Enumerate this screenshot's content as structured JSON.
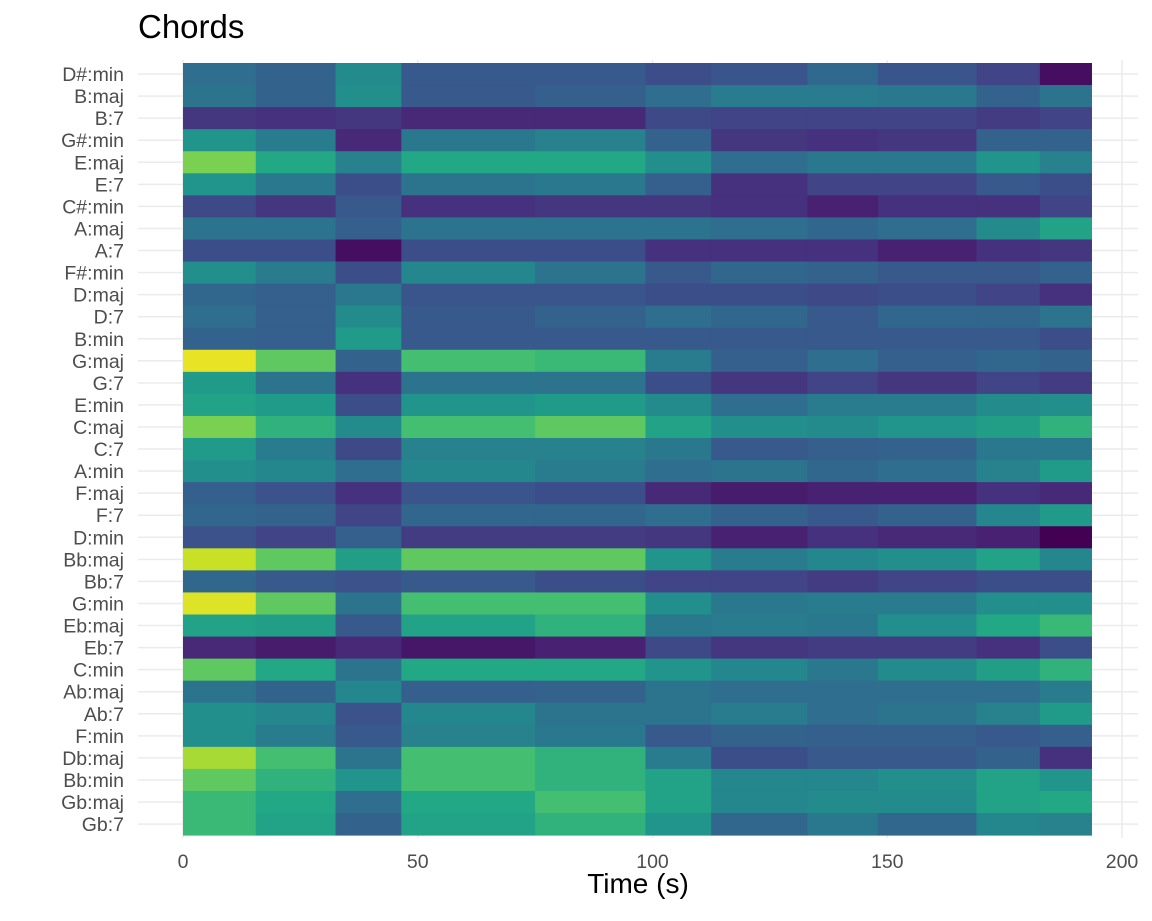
{
  "chart_data": {
    "type": "heatmap",
    "title": "Chords",
    "xlabel": "Time (s)",
    "ylabel": "",
    "xlim": [
      0,
      200
    ],
    "x_ticks": [
      0,
      50,
      100,
      150,
      200
    ],
    "grid": true,
    "legend": "none",
    "colormap": "viridis",
    "value_range": [
      0,
      1
    ],
    "time_bins": [
      [
        0,
        15.5
      ],
      [
        15.5,
        32.5
      ],
      [
        32.5,
        46.5
      ],
      [
        46.5,
        75
      ],
      [
        75,
        98.5
      ],
      [
        98.5,
        112.5
      ],
      [
        112.5,
        133
      ],
      [
        133,
        148
      ],
      [
        148,
        169
      ],
      [
        169,
        182.5
      ],
      [
        182.5,
        193.5
      ]
    ],
    "chords": [
      "D#:min",
      "B:maj",
      "B:7",
      "G#:min",
      "E:maj",
      "E:7",
      "C#:min",
      "A:maj",
      "A:7",
      "F#:min",
      "D:maj",
      "D:7",
      "B:min",
      "G:maj",
      "G:7",
      "E:min",
      "C:maj",
      "C:7",
      "A:min",
      "F:maj",
      "F:7",
      "D:min",
      "Bb:maj",
      "Bb:7",
      "G:min",
      "Eb:maj",
      "Eb:7",
      "C:min",
      "Ab:maj",
      "Ab:7",
      "F:min",
      "Db:maj",
      "Bb:min",
      "Gb:maj",
      "Gb:7"
    ],
    "values": [
      [
        0.45,
        0.4,
        0.6,
        0.35,
        0.35,
        0.3,
        0.33,
        0.43,
        0.33,
        0.25,
        0.05
      ],
      [
        0.48,
        0.4,
        0.62,
        0.35,
        0.38,
        0.45,
        0.52,
        0.52,
        0.5,
        0.4,
        0.48
      ],
      [
        0.2,
        0.18,
        0.2,
        0.15,
        0.15,
        0.28,
        0.25,
        0.25,
        0.25,
        0.22,
        0.25
      ],
      [
        0.65,
        0.52,
        0.15,
        0.5,
        0.55,
        0.4,
        0.2,
        0.18,
        0.2,
        0.4,
        0.4
      ],
      [
        0.88,
        0.75,
        0.55,
        0.75,
        0.75,
        0.62,
        0.45,
        0.5,
        0.5,
        0.65,
        0.55
      ],
      [
        0.65,
        0.5,
        0.3,
        0.48,
        0.5,
        0.38,
        0.18,
        0.25,
        0.25,
        0.35,
        0.3
      ],
      [
        0.28,
        0.2,
        0.35,
        0.18,
        0.2,
        0.2,
        0.18,
        0.12,
        0.18,
        0.18,
        0.25
      ],
      [
        0.48,
        0.48,
        0.38,
        0.48,
        0.48,
        0.48,
        0.45,
        0.42,
        0.45,
        0.6,
        0.72
      ],
      [
        0.3,
        0.3,
        0.05,
        0.3,
        0.3,
        0.18,
        0.18,
        0.18,
        0.12,
        0.18,
        0.2
      ],
      [
        0.62,
        0.52,
        0.3,
        0.58,
        0.48,
        0.35,
        0.42,
        0.4,
        0.35,
        0.35,
        0.4
      ],
      [
        0.42,
        0.38,
        0.5,
        0.33,
        0.33,
        0.3,
        0.3,
        0.28,
        0.3,
        0.25,
        0.18
      ],
      [
        0.45,
        0.38,
        0.6,
        0.35,
        0.4,
        0.45,
        0.42,
        0.35,
        0.42,
        0.42,
        0.48
      ],
      [
        0.4,
        0.38,
        0.68,
        0.35,
        0.35,
        0.35,
        0.35,
        0.35,
        0.35,
        0.35,
        0.3
      ],
      [
        0.98,
        0.85,
        0.4,
        0.82,
        0.8,
        0.52,
        0.38,
        0.45,
        0.38,
        0.42,
        0.4
      ],
      [
        0.68,
        0.48,
        0.18,
        0.48,
        0.48,
        0.3,
        0.2,
        0.25,
        0.2,
        0.25,
        0.22
      ],
      [
        0.72,
        0.68,
        0.3,
        0.65,
        0.68,
        0.6,
        0.45,
        0.52,
        0.52,
        0.6,
        0.62
      ],
      [
        0.88,
        0.78,
        0.6,
        0.82,
        0.85,
        0.72,
        0.62,
        0.6,
        0.65,
        0.7,
        0.78
      ],
      [
        0.68,
        0.52,
        0.28,
        0.55,
        0.55,
        0.5,
        0.35,
        0.38,
        0.4,
        0.5,
        0.5
      ],
      [
        0.62,
        0.58,
        0.45,
        0.58,
        0.52,
        0.45,
        0.48,
        0.42,
        0.45,
        0.55,
        0.68
      ],
      [
        0.38,
        0.32,
        0.18,
        0.33,
        0.3,
        0.15,
        0.1,
        0.12,
        0.12,
        0.18,
        0.15
      ],
      [
        0.42,
        0.4,
        0.25,
        0.42,
        0.42,
        0.45,
        0.4,
        0.35,
        0.4,
        0.58,
        0.68
      ],
      [
        0.32,
        0.25,
        0.38,
        0.22,
        0.22,
        0.2,
        0.12,
        0.18,
        0.15,
        0.12,
        0.0
      ],
      [
        0.95,
        0.85,
        0.7,
        0.85,
        0.85,
        0.65,
        0.52,
        0.58,
        0.62,
        0.72,
        0.58
      ],
      [
        0.42,
        0.35,
        0.32,
        0.35,
        0.3,
        0.25,
        0.25,
        0.22,
        0.25,
        0.3,
        0.3
      ],
      [
        0.97,
        0.85,
        0.48,
        0.82,
        0.82,
        0.62,
        0.5,
        0.52,
        0.52,
        0.62,
        0.62
      ],
      [
        0.72,
        0.7,
        0.35,
        0.72,
        0.78,
        0.5,
        0.52,
        0.5,
        0.62,
        0.75,
        0.8
      ],
      [
        0.15,
        0.1,
        0.15,
        0.08,
        0.12,
        0.28,
        0.2,
        0.22,
        0.22,
        0.18,
        0.3
      ],
      [
        0.85,
        0.75,
        0.48,
        0.75,
        0.75,
        0.65,
        0.58,
        0.5,
        0.6,
        0.7,
        0.78
      ],
      [
        0.48,
        0.4,
        0.58,
        0.38,
        0.4,
        0.48,
        0.45,
        0.45,
        0.45,
        0.45,
        0.52
      ],
      [
        0.62,
        0.58,
        0.32,
        0.58,
        0.48,
        0.48,
        0.52,
        0.45,
        0.48,
        0.55,
        0.68
      ],
      [
        0.62,
        0.52,
        0.35,
        0.55,
        0.5,
        0.35,
        0.4,
        0.38,
        0.38,
        0.35,
        0.38
      ],
      [
        0.92,
        0.82,
        0.48,
        0.82,
        0.78,
        0.52,
        0.3,
        0.35,
        0.35,
        0.4,
        0.18
      ],
      [
        0.85,
        0.78,
        0.65,
        0.82,
        0.78,
        0.72,
        0.58,
        0.58,
        0.62,
        0.72,
        0.65
      ],
      [
        0.8,
        0.75,
        0.45,
        0.75,
        0.82,
        0.72,
        0.58,
        0.6,
        0.6,
        0.72,
        0.75
      ],
      [
        0.8,
        0.72,
        0.4,
        0.72,
        0.78,
        0.65,
        0.42,
        0.5,
        0.42,
        0.58,
        0.55
      ]
    ]
  }
}
